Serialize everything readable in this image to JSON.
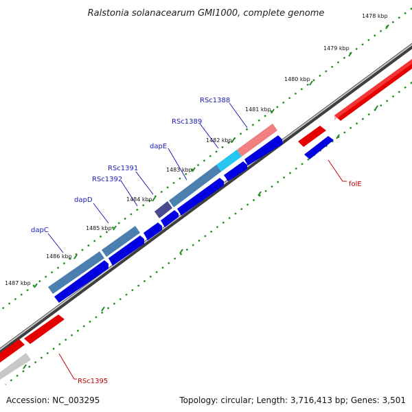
{
  "title": "Ralstonia solanacearum GMI1000, complete genome",
  "footer": {
    "accession": "Accession: NC_003295",
    "summary": "Topology: circular; Length: 3,716,413 bp; Genes: 3,501"
  },
  "ticks": [
    "1478 kbp",
    "1479 kbp",
    "1480 kbp",
    "1481 kbp",
    "1482 kbp",
    "1483 kbp",
    "1484 kbp",
    "1485 kbp",
    "1486 kbp",
    "1487 kbp"
  ],
  "gene_labels": {
    "RSc1388": "RSc1388",
    "RSc1389": "RSc1389",
    "dapE": "dapE",
    "RSc1391": "RSc1391",
    "RSc1392": "RSc1392",
    "dapD": "dapD",
    "dapC": "dapC",
    "folE": "folE",
    "RSc1395": "RSc1395"
  },
  "colors": {
    "backbone": "#7f7f7f",
    "forward_gene": "#e50000",
    "reverse_cds": "#0000e0",
    "highlight_steelblue": "#4a7fb0",
    "highlight_pink": "#f08080",
    "highlight_cyan": "#26c6f0",
    "highlight_purple": "#4a4a90",
    "highlight_gray": "#c8c8c8",
    "tick_green": "#1a8a1a",
    "label_blue": "#1a1ab8",
    "label_red": "#c00000"
  }
}
